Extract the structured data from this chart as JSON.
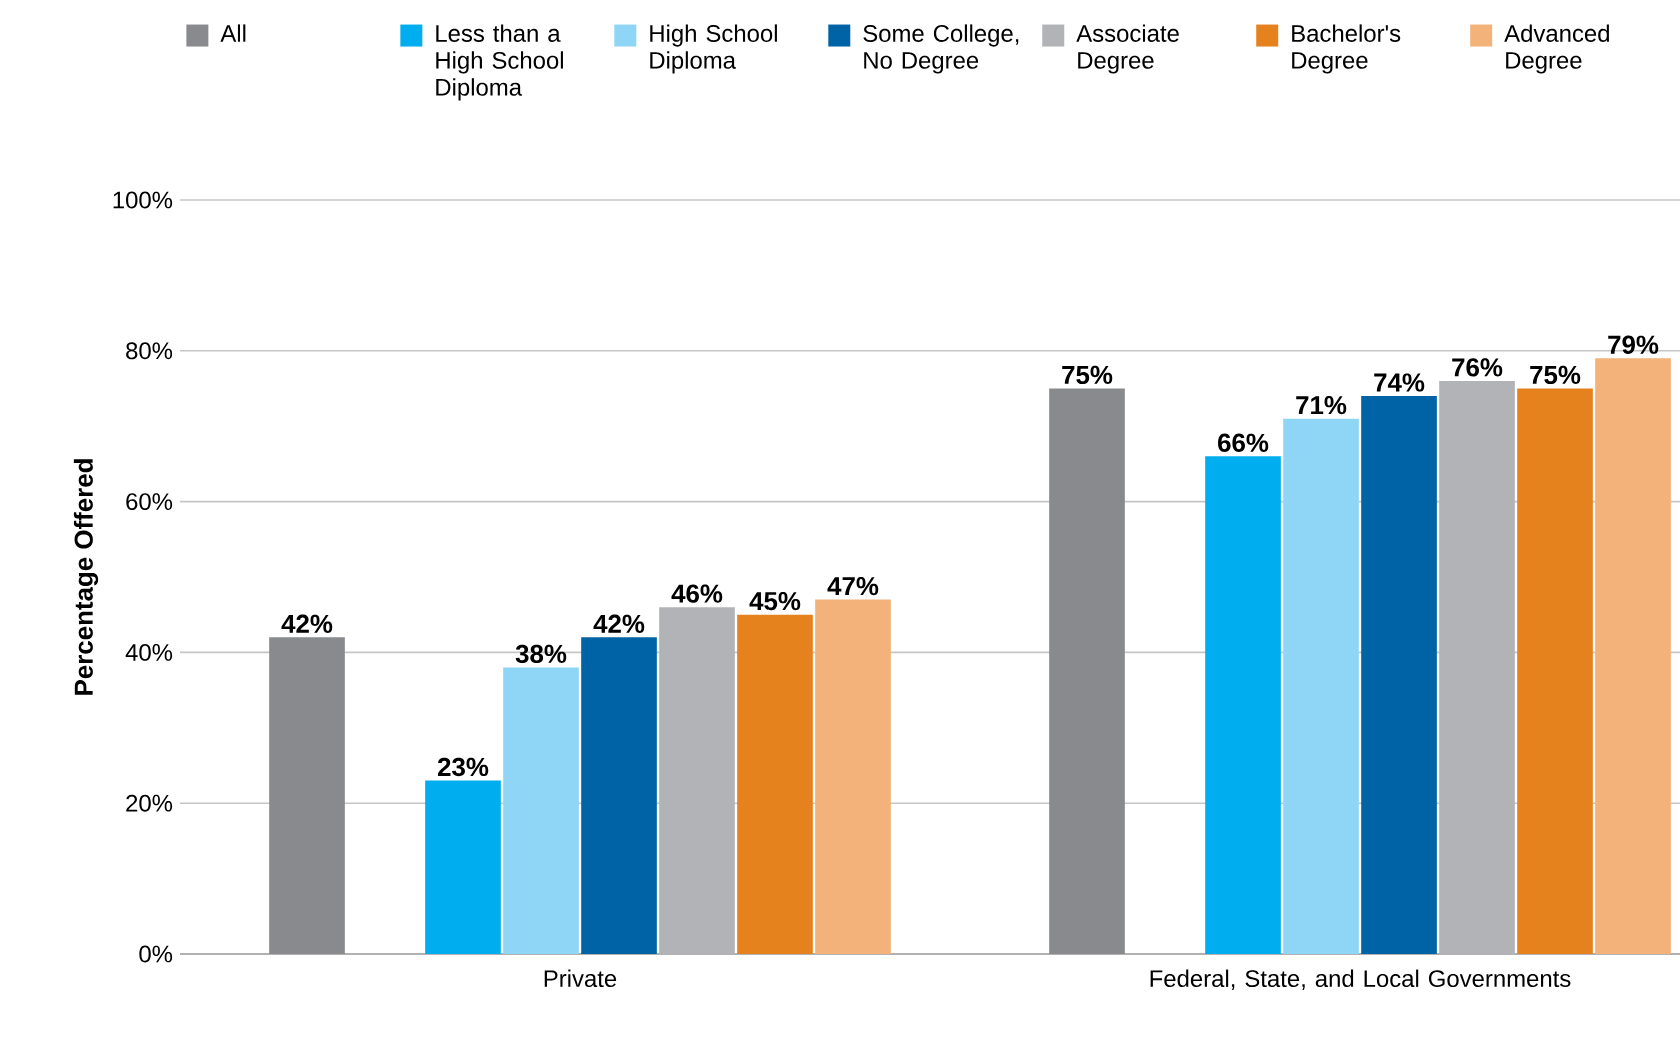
{
  "chart_data": {
    "type": "bar",
    "ylabel": "Percentage Offered",
    "categories": [
      "Private",
      "Federal, State, and Local Governments"
    ],
    "series": [
      {
        "name": "All",
        "color": "#898a8d",
        "values": [
          42,
          75
        ],
        "value_labels": [
          "42%",
          "75%"
        ]
      },
      {
        "name": "Less than a High School Diploma",
        "color": "#00aeef",
        "values": [
          23,
          66
        ],
        "value_labels": [
          "23%",
          "66%"
        ]
      },
      {
        "name": "High School Diploma",
        "color": "#8fd6f6",
        "values": [
          38,
          71
        ],
        "value_labels": [
          "38%",
          "71%"
        ]
      },
      {
        "name": "Some College, No Degree",
        "color": "#0063a6",
        "values": [
          42,
          74
        ],
        "value_labels": [
          "42%",
          "74%"
        ]
      },
      {
        "name": "Associate Degree",
        "color": "#b1b3b6",
        "values": [
          46,
          76
        ],
        "value_labels": [
          "46%",
          "76%"
        ]
      },
      {
        "name": "Bachelor's Degree",
        "color": "#e6821e",
        "values": [
          45,
          75
        ],
        "value_labels": [
          "45%",
          "75%"
        ]
      },
      {
        "name": "Advanced Degree",
        "color": "#f2b27a",
        "values": [
          47,
          79
        ],
        "value_labels": [
          "47%",
          "79%"
        ]
      }
    ],
    "ylim": [
      0,
      100
    ],
    "yticks": [
      {
        "value": 0,
        "label": "0%"
      },
      {
        "value": 20,
        "label": "20%"
      },
      {
        "value": 40,
        "label": "40%"
      },
      {
        "value": 60,
        "label": "60%"
      },
      {
        "value": 80,
        "label": "80%"
      },
      {
        "value": 100,
        "label": "100%"
      }
    ],
    "grid": "y",
    "legend": "top"
  }
}
